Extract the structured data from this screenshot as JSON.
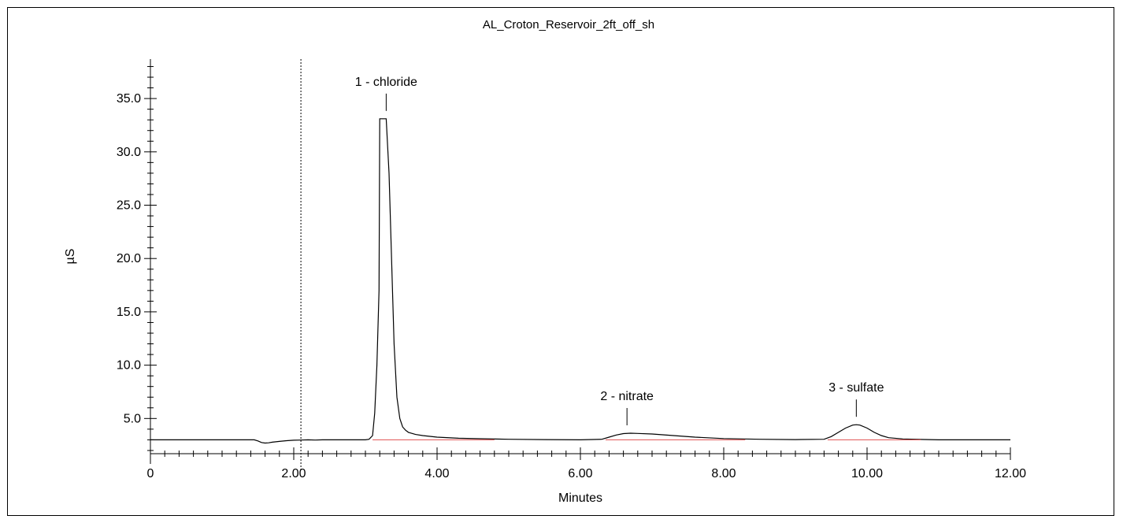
{
  "chart_data": {
    "type": "line",
    "title": "AL_Croton_Reservoir_2ft_off_sh",
    "xlabel": "Minutes",
    "ylabel": "µS",
    "xlim": [
      0,
      12
    ],
    "ylim": [
      1.7,
      38.7
    ],
    "grid": false,
    "x_ticks": [
      {
        "value": 0,
        "label": "0"
      },
      {
        "value": 2,
        "label": "2.00"
      },
      {
        "value": 4,
        "label": "4.00"
      },
      {
        "value": 6,
        "label": "6.00"
      },
      {
        "value": 8,
        "label": "8.00"
      },
      {
        "value": 10,
        "label": "10.00"
      },
      {
        "value": 12,
        "label": "12.00"
      }
    ],
    "y_ticks": [
      {
        "value": 5,
        "label": "5.0"
      },
      {
        "value": 10,
        "label": "10.0"
      },
      {
        "value": 15,
        "label": "15.0"
      },
      {
        "value": 20,
        "label": "20.0"
      },
      {
        "value": 25,
        "label": "25.0"
      },
      {
        "value": 30,
        "label": "30.0"
      },
      {
        "value": 35,
        "label": "35.0"
      }
    ],
    "marker_line_x": 2.1,
    "series": [
      {
        "color": "#000000",
        "x": [
          0,
          1.45,
          1.5,
          1.55,
          1.6,
          1.65,
          1.7,
          1.8,
          1.9,
          2.0,
          2.1,
          2.2,
          2.3,
          2.4,
          2.6,
          2.8,
          3.0,
          3.05,
          3.1,
          3.13,
          3.16,
          3.19,
          3.2,
          3.23,
          3.26,
          3.29,
          3.33,
          3.36,
          3.4,
          3.44,
          3.48,
          3.52,
          3.56,
          3.6,
          3.7,
          3.8,
          4.0,
          4.3,
          4.6,
          5.0,
          5.5,
          6.0,
          6.3,
          6.4,
          6.5,
          6.6,
          6.7,
          6.8,
          7.0,
          7.3,
          7.6,
          8.0,
          8.5,
          9.0,
          9.4,
          9.5,
          9.6,
          9.7,
          9.8,
          9.85,
          9.9,
          10.0,
          10.1,
          10.2,
          10.3,
          10.5,
          10.8,
          11.0,
          12.0
        ],
        "y": [
          3.0,
          3.0,
          2.9,
          2.75,
          2.7,
          2.72,
          2.78,
          2.85,
          2.92,
          2.96,
          2.98,
          3.0,
          2.98,
          3.0,
          3.0,
          3.0,
          3.0,
          3.05,
          3.4,
          5.5,
          10.0,
          17.0,
          33.1,
          33.1,
          33.1,
          33.1,
          28.0,
          21.0,
          12.0,
          7.0,
          5.0,
          4.2,
          3.9,
          3.7,
          3.5,
          3.4,
          3.25,
          3.15,
          3.1,
          3.05,
          3.02,
          3.0,
          3.05,
          3.25,
          3.45,
          3.58,
          3.62,
          3.6,
          3.55,
          3.4,
          3.25,
          3.12,
          3.05,
          3.02,
          3.05,
          3.3,
          3.7,
          4.1,
          4.38,
          4.42,
          4.38,
          4.1,
          3.7,
          3.4,
          3.2,
          3.08,
          3.03,
          3.0,
          3.0
        ]
      },
      {
        "color": "#e05050",
        "x": [
          3.1,
          4.8
        ],
        "y": [
          3.0,
          3.0
        ]
      },
      {
        "color": "#e05050",
        "x": [
          6.35,
          8.3
        ],
        "y": [
          3.0,
          3.0
        ]
      },
      {
        "color": "#e05050",
        "x": [
          9.45,
          10.75
        ],
        "y": [
          3.0,
          3.0
        ]
      }
    ],
    "annotations": [
      {
        "text": "1 - chloride",
        "x": 3.29
      },
      {
        "text": "2 - nitrate",
        "x": 6.65
      },
      {
        "text": "3 - sulfate",
        "x": 9.85
      }
    ]
  }
}
